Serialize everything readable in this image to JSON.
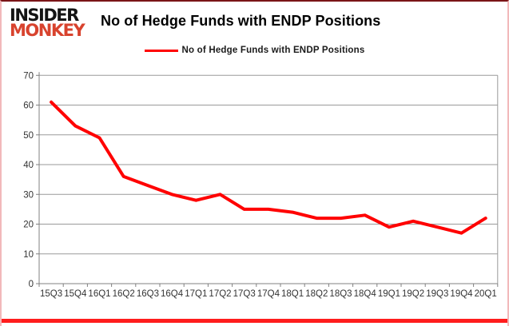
{
  "logo": {
    "line1": "INSIDER",
    "line2": "MONKEY"
  },
  "header": {
    "title": "No of Hedge Funds with ENDP Positions"
  },
  "legend": {
    "label": "No of Hedge Funds with ENDP Positions"
  },
  "chart_data": {
    "type": "line",
    "title": "No of Hedge Funds with ENDP Positions",
    "categories": [
      "15Q3",
      "15Q4",
      "16Q1",
      "16Q2",
      "16Q3",
      "16Q4",
      "17Q1",
      "17Q2",
      "17Q3",
      "17Q4",
      "18Q1",
      "18Q2",
      "18Q3",
      "18Q4",
      "19Q1",
      "19Q2",
      "19Q3",
      "19Q4",
      "20Q1"
    ],
    "values": [
      61,
      53,
      49,
      36,
      33,
      30,
      28,
      30,
      25,
      25,
      24,
      22,
      22,
      23,
      19,
      21,
      19,
      17,
      22
    ],
    "xlabel": "",
    "ylabel": "",
    "ylim": [
      0,
      70
    ],
    "ytick_interval": 10,
    "grid": true,
    "legend_position": "top-center",
    "line_color": "#ff0000"
  },
  "colors": {
    "accent_red": "#ff0000",
    "logo_red": "#d8432e",
    "frame_bottom_bar": "#ff1d1d",
    "gridline": "#9a9a9a",
    "axis": "#808080",
    "tick_text": "#333333"
  }
}
